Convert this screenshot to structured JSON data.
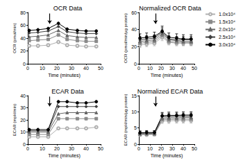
{
  "chart_data": [
    {
      "type": "line",
      "title": "OCR Data",
      "x_label": "Time (minutes)",
      "y_label": "OCR (pmol/min)",
      "x": [
        1,
        7,
        14,
        21,
        27,
        34,
        40,
        47
      ],
      "xlim": [
        0,
        50
      ],
      "xticks": [
        0,
        10,
        20,
        30,
        40,
        50
      ],
      "ylim": [
        0,
        80
      ],
      "yticks": [
        0,
        20,
        40,
        60,
        80
      ],
      "grid": false,
      "legend": "right",
      "arrow_x": 15,
      "series": [
        {
          "name": "1.0x10⁴",
          "color": "#b0b0b0",
          "marker": "emptyCircle",
          "values": [
            28,
            28,
            29,
            34,
            29,
            28,
            27,
            27
          ]
        },
        {
          "name": "1.5x10⁴",
          "color": "#8a8a8a",
          "marker": "rect",
          "values": [
            36,
            37,
            38,
            45,
            38,
            36,
            35,
            35
          ]
        },
        {
          "name": "2.0x10⁴",
          "color": "#666666",
          "marker": "triangle",
          "values": [
            42,
            43,
            45,
            52,
            44,
            42,
            41,
            41
          ]
        },
        {
          "name": "2.5x10⁴",
          "color": "#404040",
          "marker": "diamond",
          "values": [
            48,
            49,
            51,
            58,
            50,
            48,
            47,
            47
          ]
        },
        {
          "name": "3.0x10⁴",
          "color": "#000000",
          "marker": "circle",
          "values": [
            52,
            53,
            55,
            63,
            54,
            52,
            51,
            51
          ]
        }
      ]
    },
    {
      "type": "line",
      "title": "Normalized OCR Data",
      "x_label": "Time (minutes)",
      "y_label": "OCR (pmol/min/µg protein)",
      "x": [
        1,
        7,
        14,
        21,
        27,
        34,
        40,
        47
      ],
      "xlim": [
        0,
        50
      ],
      "xticks": [
        0,
        10,
        20,
        30,
        40,
        50
      ],
      "ylim": [
        0,
        60
      ],
      "yticks": [
        0,
        20,
        40,
        60
      ],
      "grid": false,
      "arrow_x": 15,
      "series": [
        {
          "name": "1.0x10⁴",
          "color": "#b0b0b0",
          "marker": "emptyCircle",
          "values": [
            22,
            23,
            24,
            31,
            25,
            24,
            24,
            24
          ],
          "errors": [
            3,
            3,
            3,
            4,
            3,
            3,
            3,
            3
          ]
        },
        {
          "name": "1.5x10⁴",
          "color": "#8a8a8a",
          "marker": "rect",
          "values": [
            24,
            25,
            26,
            33,
            26,
            25,
            25,
            25
          ],
          "errors": [
            3,
            3,
            3,
            4,
            3,
            3,
            3,
            3
          ]
        },
        {
          "name": "2.0x10⁴",
          "color": "#666666",
          "marker": "triangle",
          "values": [
            26,
            27,
            28,
            35,
            28,
            27,
            26,
            26
          ],
          "errors": [
            4,
            4,
            4,
            5,
            4,
            4,
            4,
            4
          ]
        },
        {
          "name": "2.5x10⁴",
          "color": "#404040",
          "marker": "diamond",
          "values": [
            28,
            29,
            30,
            37,
            29,
            28,
            28,
            28
          ],
          "errors": [
            4,
            4,
            4,
            5,
            4,
            4,
            4,
            4
          ]
        },
        {
          "name": "3.0x10⁴",
          "color": "#000000",
          "marker": "circle",
          "values": [
            30,
            31,
            32,
            38,
            31,
            30,
            29,
            29
          ],
          "errors": [
            5,
            5,
            5,
            6,
            5,
            5,
            5,
            5
          ]
        }
      ]
    },
    {
      "type": "line",
      "title": "ECAR Data",
      "x_label": "Time (minutes)",
      "y_label": "ECAR (mpH/min)",
      "x": [
        1,
        7,
        14,
        21,
        27,
        34,
        40,
        47
      ],
      "xlim": [
        0,
        50
      ],
      "xticks": [
        0,
        10,
        20,
        30,
        40,
        50
      ],
      "ylim": [
        0,
        40
      ],
      "yticks": [
        0,
        10,
        20,
        30,
        40
      ],
      "grid": false,
      "arrow_x": 15,
      "series": [
        {
          "name": "1.0x10⁴",
          "color": "#b0b0b0",
          "marker": "emptyCircle",
          "values": [
            6,
            6,
            6,
            13,
            13,
            13,
            13,
            14
          ]
        },
        {
          "name": "1.5x10⁴",
          "color": "#8a8a8a",
          "marker": "rect",
          "values": [
            8,
            8,
            8,
            21,
            21,
            21,
            21,
            21
          ]
        },
        {
          "name": "2.0x10⁴",
          "color": "#666666",
          "marker": "triangle",
          "values": [
            10,
            10,
            10,
            25,
            26,
            26,
            26,
            26
          ]
        },
        {
          "name": "2.5x10⁴",
          "color": "#404040",
          "marker": "diamond",
          "values": [
            11,
            11,
            11,
            31,
            31,
            31,
            31,
            31
          ]
        },
        {
          "name": "3.0x10⁴",
          "color": "#000000",
          "marker": "circle",
          "values": [
            12,
            12,
            12,
            35,
            35,
            34,
            34,
            35
          ]
        }
      ]
    },
    {
      "type": "line",
      "title": "Normalized ECAR Data",
      "x_label": "Time (minutes)",
      "y_label": "ECAR (mpH/min/µg protein)",
      "x": [
        1,
        7,
        14,
        21,
        27,
        34,
        40,
        47
      ],
      "xlim": [
        0,
        50
      ],
      "xticks": [
        0,
        10,
        20,
        30,
        40,
        50
      ],
      "ylim": [
        0,
        15
      ],
      "yticks": [
        0,
        5,
        10,
        15
      ],
      "grid": false,
      "arrow_x": 15,
      "series": [
        {
          "name": "1.0x10⁴",
          "color": "#b0b0b0",
          "marker": "emptyCircle",
          "values": [
            2.9,
            2.9,
            3.0,
            7.2,
            7.2,
            7.3,
            7.3,
            7.3
          ],
          "errors": [
            0.5,
            0.5,
            0.5,
            0.8,
            0.8,
            0.8,
            0.8,
            0.8
          ]
        },
        {
          "name": "1.5x10⁴",
          "color": "#8a8a8a",
          "marker": "rect",
          "values": [
            3.0,
            3.1,
            3.1,
            7.6,
            7.6,
            7.7,
            7.7,
            7.7
          ],
          "errors": [
            0.5,
            0.5,
            0.5,
            0.8,
            0.8,
            0.8,
            0.8,
            0.8
          ]
        },
        {
          "name": "2.0x10⁴",
          "color": "#666666",
          "marker": "triangle",
          "values": [
            3.2,
            3.3,
            3.3,
            8.0,
            8.1,
            8.1,
            8.2,
            8.2
          ],
          "errors": [
            0.5,
            0.5,
            0.5,
            0.9,
            0.9,
            0.9,
            0.9,
            0.9
          ]
        },
        {
          "name": "2.5x10⁴",
          "color": "#404040",
          "marker": "diamond",
          "values": [
            3.4,
            3.4,
            3.5,
            8.5,
            8.5,
            8.6,
            8.6,
            8.6
          ],
          "errors": [
            0.6,
            0.6,
            0.6,
            1.0,
            1.0,
            1.0,
            1.0,
            1.0
          ]
        },
        {
          "name": "3.0x10⁴",
          "color": "#000000",
          "marker": "circle",
          "values": [
            3.5,
            3.6,
            3.6,
            8.8,
            8.9,
            8.9,
            9.0,
            9.0
          ],
          "errors": [
            0.6,
            0.6,
            0.6,
            1.0,
            1.0,
            1.0,
            1.0,
            1.0
          ]
        }
      ]
    }
  ]
}
